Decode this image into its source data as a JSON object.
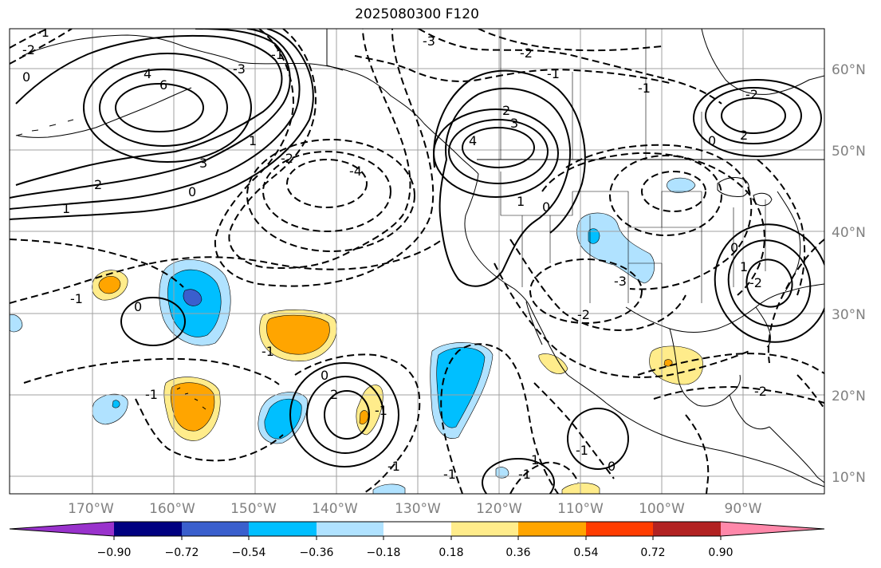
{
  "title": "2025080300 F120",
  "map": {
    "lon_labels": [
      "170°W",
      "160°W",
      "150°W",
      "140°W",
      "130°W",
      "120°W",
      "110°W",
      "100°W",
      "90°W"
    ],
    "lat_labels": [
      "60°N",
      "50°N",
      "40°N",
      "30°N",
      "20°N",
      "10°N"
    ],
    "contour_labels": [
      "-2",
      "-1",
      "0",
      "4",
      "6",
      "3",
      "2",
      "1",
      "-1",
      "-2",
      "-3",
      "-3",
      "-4",
      "-3",
      "-2",
      "-1",
      "2",
      "3",
      "4",
      "0",
      "1",
      "2",
      "-2",
      "-1",
      "0",
      "-1",
      "0",
      "-1",
      "0",
      "2",
      "-1",
      "-1",
      "-2",
      "-2",
      "-1",
      "-1",
      "-2",
      "0",
      "1",
      "0",
      "1",
      "0",
      "-1",
      "1",
      "-1"
    ],
    "colors": {
      "land_outline": "#000000",
      "grid": "#a0a0a0",
      "contour": "#000000"
    }
  },
  "colorbar": {
    "tick_labels": [
      "−0.90",
      "−0.72",
      "−0.54",
      "−0.36",
      "−0.18",
      "0.18",
      "0.36",
      "0.54",
      "0.72",
      "0.90"
    ],
    "colors": [
      "#9932cc",
      "#000080",
      "#3a5fcd",
      "#00bfff",
      "#b0e2ff",
      "#ffffff",
      "#ffec8b",
      "#ffa500",
      "#ff3c00",
      "#b22222",
      "#ff88aa"
    ]
  }
}
